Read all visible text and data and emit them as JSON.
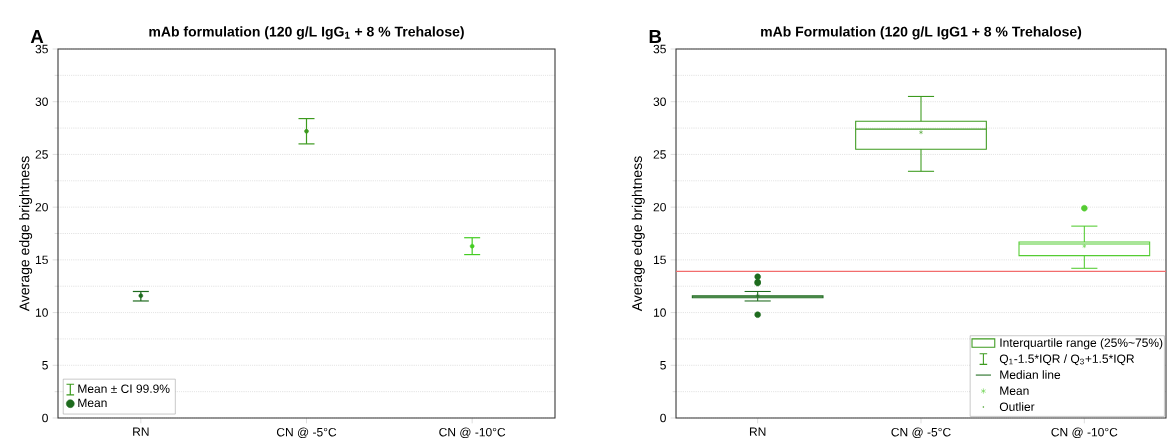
{
  "chart_data": [
    {
      "type": "scatter",
      "title": "mAb formulation (120 g/L IgG$_{1}$ + 8 % Trehalose)",
      "ylabel": "Average edge brightness",
      "categories": [
        "RN",
        "CN @ -5°C",
        "CN @ -10°C"
      ],
      "series": [
        {
          "name": "Mean",
          "colors": [
            "#1e6b1e",
            "#3c9a1e",
            "#44cc22"
          ],
          "values": [
            11.6,
            27.2,
            16.3
          ],
          "errors": [
            [
              11.1,
              12.0
            ],
            [
              26.0,
              28.4
            ],
            [
              15.5,
              17.1
            ]
          ]
        }
      ],
      "ylim": [
        0,
        35
      ],
      "yticks": [
        0,
        5,
        10,
        15,
        20,
        25,
        30,
        35
      ],
      "grid": "y",
      "legend": "bottom left",
      "marker": "circle",
      "annotations": [
        "A",
        "Mean ± CI 99.9%"
      ]
    },
    {
      "type": "box",
      "title": "mAb Formulation (120 g/L IgG1 + 8 % Trehalose)",
      "ylabel": "Average edge brightness",
      "categories": [
        "RN",
        "CN @ -5°C",
        "CN @ -10°C"
      ],
      "colors": [
        "#1e6b1e",
        "#3c9a1e",
        "#55cc33"
      ],
      "boxes": [
        {
          "low": 11.1,
          "q1": 11.4,
          "median": 11.5,
          "q3": 11.6,
          "high": 12.0,
          "mean": 11.6,
          "outliers": [
            13.4,
            12.9,
            12.8,
            9.8
          ]
        },
        {
          "low": 23.4,
          "q1": 25.5,
          "median": 27.4,
          "q3": 28.15,
          "high": 30.5,
          "mean": 27.1
        },
        {
          "low": 14.2,
          "q1": 15.4,
          "median": 16.5,
          "q3": 16.7,
          "high": 18.2,
          "mean": 16.3,
          "outliers": [
            19.9
          ]
        }
      ],
      "ref_lines": [
        {
          "axis": "y",
          "value": 13.9,
          "color": "#f26d6d"
        }
      ],
      "ylim": [
        0,
        35
      ],
      "yticks": [
        0,
        5,
        10,
        15,
        20,
        25,
        30,
        35
      ],
      "grid": "y",
      "annotations": [
        "B",
        "Interquartile range (25%~75%)",
        "Q$_{1}$-1.5*IQR / Q$_{3}$+1.5*IQR",
        "Median line",
        "Mean",
        "Outlier"
      ]
    }
  ]
}
